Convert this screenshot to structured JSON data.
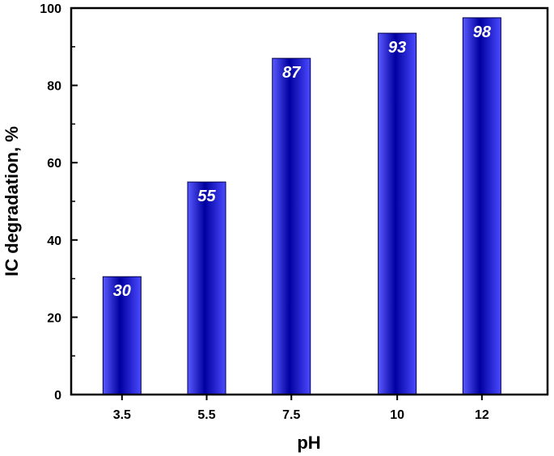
{
  "chart_data": {
    "type": "bar",
    "categories": [
      "3.5",
      "5.5",
      "7.5",
      "10",
      "12"
    ],
    "x": [
      3.5,
      5.5,
      7.5,
      10,
      12
    ],
    "values": [
      30.5,
      55,
      87,
      93.5,
      97.5
    ],
    "data_labels": [
      "30",
      "55",
      "87",
      "93",
      "98"
    ],
    "xlabel": "pH",
    "ylabel": "IC degradation, %",
    "ylim": [
      0,
      100
    ],
    "yticks": [
      0,
      20,
      40,
      60,
      80,
      100
    ],
    "ytick_labels": [
      "0",
      "20",
      "40",
      "60",
      "80",
      "100"
    ],
    "grid": false,
    "legend": "none",
    "colors": {
      "bar_light": "#5a5aff",
      "bar_dark": "#00008b",
      "bar_edge": "#00004d",
      "label": "#ffffff",
      "axis": "#000000"
    }
  }
}
